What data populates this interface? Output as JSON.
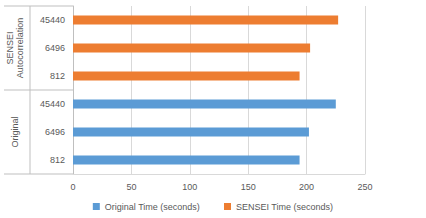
{
  "chart_data": {
    "type": "bar",
    "orientation": "horizontal",
    "categories": [
      "812",
      "6496",
      "45440",
      "812",
      "6496",
      "45440"
    ],
    "category_groups": [
      "Original",
      "Original",
      "Original",
      "SENSEI Autocorrelation",
      "SENSEI Autocorrelation",
      "SENSEI Autocorrelation"
    ],
    "series": [
      {
        "name": "Original Time (seconds)",
        "color": "#5b9bd5",
        "values": [
          194,
          202,
          225,
          null,
          null,
          null
        ]
      },
      {
        "name": "SENSEI Time (seconds)",
        "color": "#ed7d31",
        "values": [
          null,
          null,
          null,
          194,
          203,
          227
        ]
      }
    ],
    "xlim": [
      0,
      250
    ],
    "xticks": [
      0,
      50,
      100,
      150,
      200,
      250
    ],
    "grid": true,
    "legend": "bottom"
  }
}
